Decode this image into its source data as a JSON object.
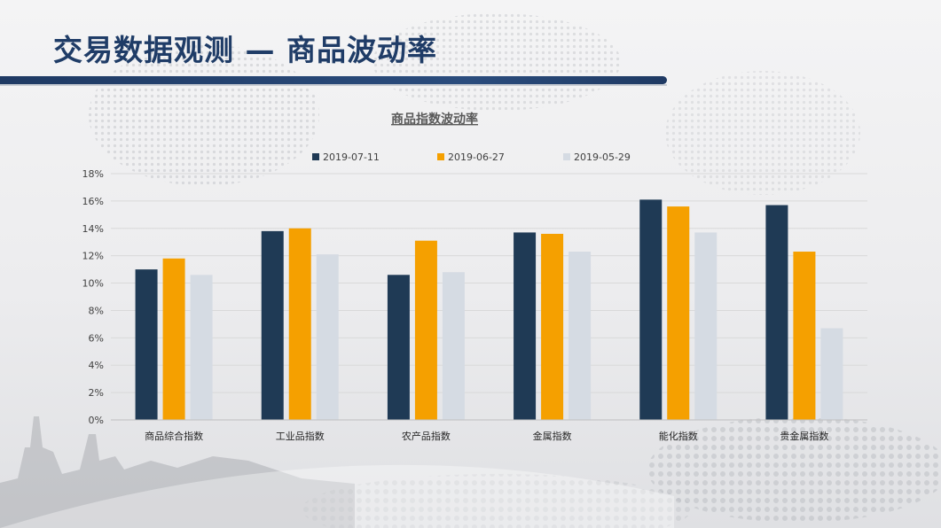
{
  "slide": {
    "title": "交易数据观测 — 商品波动率"
  },
  "colors": {
    "title": "#1f3c67",
    "series": [
      "#1f3a55",
      "#f5a000",
      "#d5dbe3"
    ],
    "grid": "#d9d9d9"
  },
  "chart_data": {
    "type": "bar",
    "title": "商品指数波动率",
    "categories": [
      "商品综合指数",
      "工业品指数",
      "农产品指数",
      "金属指数",
      "能化指数",
      "贵金属指数"
    ],
    "series": [
      {
        "name": "2019-07-11",
        "values": [
          11.0,
          13.8,
          10.6,
          13.7,
          16.1,
          15.7
        ]
      },
      {
        "name": "2019-06-27",
        "values": [
          11.8,
          14.0,
          13.1,
          13.6,
          15.6,
          12.3
        ]
      },
      {
        "name": "2019-05-29",
        "values": [
          10.6,
          12.1,
          10.8,
          12.3,
          13.7,
          6.7
        ]
      }
    ],
    "y_ticks": [
      "0%",
      "2%",
      "4%",
      "6%",
      "8%",
      "10%",
      "12%",
      "14%",
      "16%",
      "18%"
    ],
    "ylim": [
      0,
      18
    ],
    "y_unit": "%",
    "grid": true,
    "legend_position": "top"
  }
}
